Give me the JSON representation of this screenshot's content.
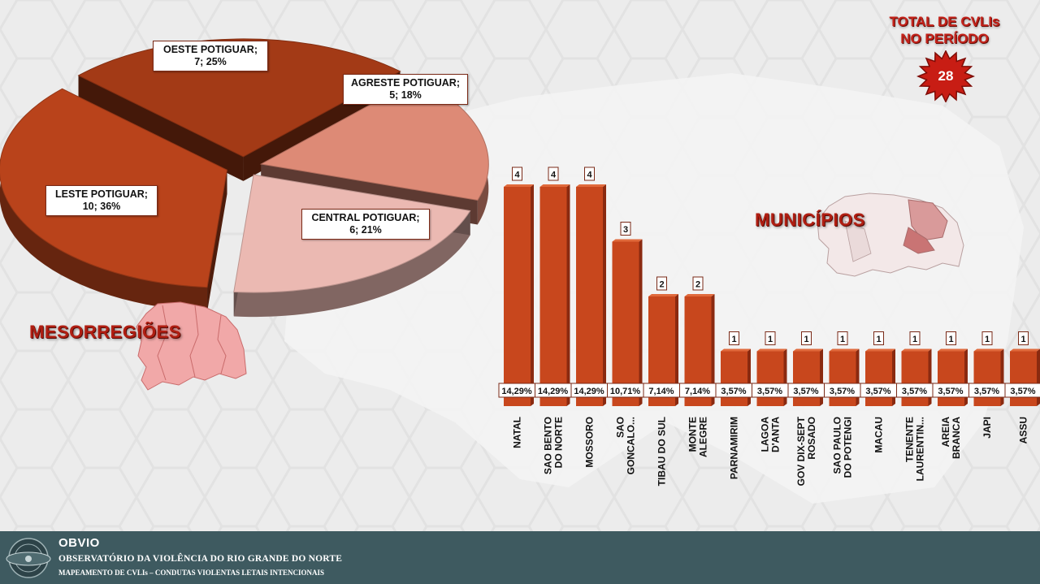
{
  "colors": {
    "bar": "#c8471d",
    "bar_dark": "#8a2a10",
    "leste": "#b9431b",
    "oeste": "#a33a16",
    "agreste": "#dd8a76",
    "central": "#ebb9b2",
    "title_red": "#b01e12",
    "footer_bg": "#3e5a60"
  },
  "total": {
    "title_line1": "TOTAL DE CVLIs",
    "title_line2": "NO PERÍODO",
    "value": "28"
  },
  "titles": {
    "mesorregioes": "MESORREGIÕES",
    "municipios": "MUNICÍPIOS"
  },
  "chart_data": [
    {
      "type": "pie",
      "slices": [
        {
          "label": "LESTE POTIGUAR;",
          "value": 10,
          "percent": 36,
          "text": "10; 36%"
        },
        {
          "label": "OESTE POTIGUAR;",
          "value": 7,
          "percent": 25,
          "text": "7; 25%"
        },
        {
          "label": "AGRESTE POTIGUAR;",
          "value": 5,
          "percent": 18,
          "text": "5; 18%"
        },
        {
          "label": "CENTRAL POTIGUAR;",
          "value": 6,
          "percent": 21,
          "text": "6; 21%"
        }
      ]
    },
    {
      "type": "bar",
      "categories": [
        [
          "NATAL"
        ],
        [
          "SAO BENTO",
          "DO NORTE"
        ],
        [
          "MOSSORO"
        ],
        [
          "SAO",
          "GONCALO..."
        ],
        [
          "TIBAU DO SUL"
        ],
        [
          "MONTE",
          "ALEGRE"
        ],
        [
          "PARNAMIRIM"
        ],
        [
          "LAGOA",
          "D'ANTA"
        ],
        [
          "GOV DIX-SEPT",
          "ROSADO"
        ],
        [
          "SAO PAULO",
          "DO POTENGI"
        ],
        [
          "MACAU"
        ],
        [
          "TENENTE",
          "LAURENTIN..."
        ],
        [
          "AREIA",
          "BRANCA"
        ],
        [
          "JAPI"
        ],
        [
          "ASSU"
        ]
      ],
      "values": [
        4,
        4,
        4,
        3,
        2,
        2,
        1,
        1,
        1,
        1,
        1,
        1,
        1,
        1,
        1
      ],
      "percent_labels": [
        "14,29%",
        "14,29%",
        "14,29%",
        "10,71%",
        "7,14%",
        "7,14%",
        "3,57%",
        "3,57%",
        "3,57%",
        "3,57%",
        "3,57%",
        "3,57%",
        "3,57%",
        "3,57%",
        "3,57%"
      ],
      "ylim": [
        0,
        4
      ]
    }
  ],
  "footer": {
    "brand": "OBVIO",
    "line1": "OBSERVATÓRIO  DA VIOLÊNCIA  DO RIO  GRANDE DO NORTE",
    "line2": "MAPEAMENTO DE CVLIs – CONDUTAS VIOLENTAS LETAIS INTENCIONAIS"
  }
}
